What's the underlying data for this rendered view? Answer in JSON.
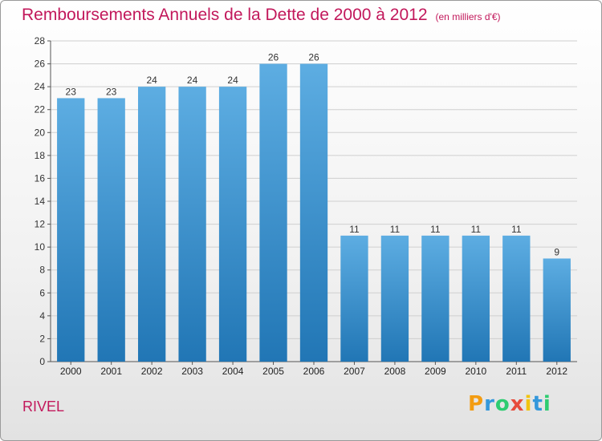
{
  "header": {
    "title": "Remboursements Annuels de la Dette de 2000 à 2012",
    "subtitle": "(en milliers d'€)"
  },
  "footer": {
    "location": "RIVEL",
    "logo_letters": [
      "P",
      "r",
      "o",
      "x",
      "i",
      "t",
      "i"
    ],
    "logo_colors": [
      "#f39c12",
      "#3498db",
      "#2ecc71",
      "#e74c3c",
      "#f1c40f",
      "#3498db",
      "#2ecc71"
    ]
  },
  "colors": {
    "title": "#c2185b",
    "bar_top": "#5dade2",
    "bar_bottom": "#2176b5",
    "grid": "#cfcfcf",
    "axis": "#555555"
  },
  "chart_data": {
    "type": "bar",
    "title": "Remboursements Annuels de la Dette de 2000 à 2012",
    "subtitle": "(en milliers d'€)",
    "categories": [
      "2000",
      "2001",
      "2002",
      "2003",
      "2004",
      "2005",
      "2006",
      "2007",
      "2008",
      "2009",
      "2010",
      "2011",
      "2012"
    ],
    "values": [
      23,
      23,
      24,
      24,
      24,
      26,
      26,
      11,
      11,
      11,
      11,
      11,
      9
    ],
    "ylim": [
      0,
      28
    ],
    "yticks": [
      0,
      2,
      4,
      6,
      8,
      10,
      12,
      14,
      16,
      18,
      20,
      22,
      24,
      26,
      28
    ],
    "grid": true,
    "xlabel": "",
    "ylabel": ""
  }
}
